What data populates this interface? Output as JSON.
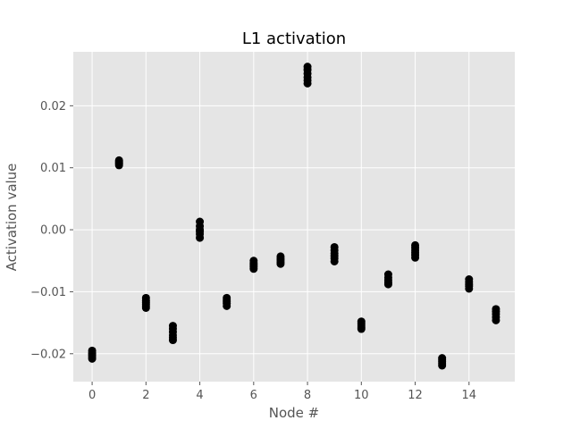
{
  "chart_data": {
    "type": "scatter",
    "title": "L1 activation",
    "xlabel": "Node #",
    "ylabel": "Activation value",
    "xlim": [
      -0.7,
      15.7
    ],
    "ylim": [
      -0.0245,
      0.0287
    ],
    "xticks": [
      0,
      2,
      4,
      6,
      8,
      10,
      12,
      14
    ],
    "yticks": [
      -0.02,
      -0.01,
      0.0,
      0.01,
      0.02
    ],
    "ytick_labels": [
      "−0.02",
      "−0.01",
      "0.00",
      "0.01",
      "0.02"
    ],
    "grid": true,
    "background": "#e5e5e5",
    "grid_color": "#ffffff",
    "marker_color": "#000000",
    "series": [
      {
        "x": [
          0,
          0,
          0,
          0,
          0,
          1,
          1,
          1,
          1,
          1,
          2,
          2,
          2,
          2,
          2,
          2,
          3,
          3,
          3,
          3,
          3,
          3,
          4,
          4,
          4,
          4,
          4,
          4,
          5,
          5,
          5,
          5,
          5,
          6,
          6,
          6,
          6,
          6,
          7,
          7,
          7,
          7,
          7,
          8,
          8,
          8,
          8,
          8,
          8,
          9,
          9,
          9,
          9,
          9,
          9,
          10,
          10,
          10,
          10,
          10,
          11,
          11,
          11,
          11,
          11,
          12,
          12,
          12,
          12,
          12,
          12,
          13,
          13,
          13,
          13,
          13,
          14,
          14,
          14,
          14,
          14,
          15,
          15,
          15,
          15,
          15
        ],
        "y": [
          -0.0195,
          -0.0199,
          -0.0202,
          -0.0205,
          -0.0208,
          0.0112,
          0.011,
          0.0108,
          0.0106,
          0.0104,
          -0.011,
          -0.0114,
          -0.0117,
          -0.012,
          -0.0123,
          -0.0126,
          -0.0155,
          -0.016,
          -0.0165,
          -0.017,
          -0.0174,
          -0.0178,
          0.0013,
          0.0006,
          0.0,
          -0.0003,
          -0.0007,
          -0.0013,
          -0.011,
          -0.0113,
          -0.0116,
          -0.0119,
          -0.0123,
          -0.005,
          -0.0054,
          -0.0057,
          -0.006,
          -0.0063,
          -0.0043,
          -0.0046,
          -0.0049,
          -0.0052,
          -0.0055,
          0.0263,
          0.0258,
          0.0252,
          0.0246,
          0.0241,
          0.0236,
          -0.0028,
          -0.0033,
          -0.0038,
          -0.0042,
          -0.0046,
          -0.0051,
          -0.0148,
          -0.0151,
          -0.0154,
          -0.0157,
          -0.016,
          -0.0072,
          -0.0077,
          -0.0081,
          -0.0085,
          -0.0088,
          -0.0025,
          -0.0029,
          -0.0033,
          -0.0037,
          -0.0041,
          -0.0045,
          -0.0207,
          -0.021,
          -0.0213,
          -0.0216,
          -0.0219,
          -0.008,
          -0.0084,
          -0.0088,
          -0.0091,
          -0.0095,
          -0.0128,
          -0.0132,
          -0.0136,
          -0.0141,
          -0.0146
        ]
      }
    ]
  }
}
